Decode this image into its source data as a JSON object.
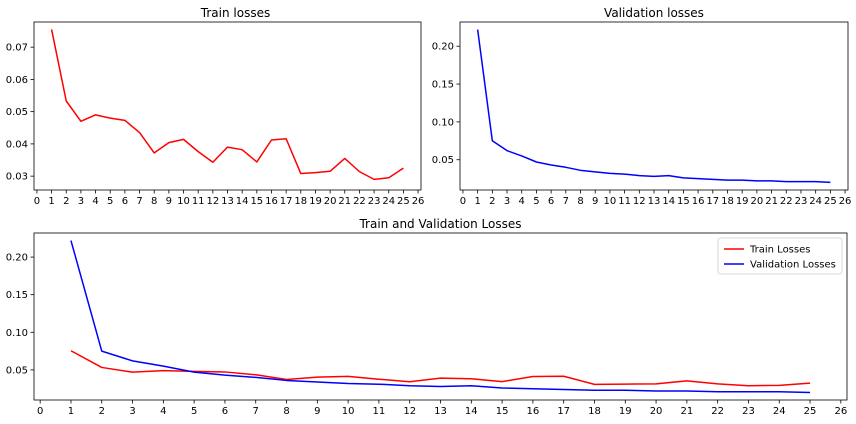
{
  "chart_data": [
    {
      "type": "line",
      "title": "Train losses",
      "x": [
        1,
        2,
        3,
        4,
        5,
        6,
        7,
        8,
        9,
        10,
        11,
        12,
        13,
        14,
        15,
        16,
        17,
        18,
        19,
        20,
        21,
        22,
        23,
        24,
        25
      ],
      "series": [
        {
          "values": [
            0.0755,
            0.0533,
            0.047,
            0.049,
            0.048,
            0.0473,
            0.0435,
            0.0372,
            0.0404,
            0.0414,
            0.0376,
            0.0343,
            0.039,
            0.0382,
            0.0344,
            0.0412,
            0.0416,
            0.0308,
            0.0311,
            0.0315,
            0.0355,
            0.0314,
            0.029,
            0.0295,
            0.0325
          ],
          "color": "#ff0000"
        }
      ],
      "xlim": [
        -0.2,
        26.2
      ],
      "ylim": [
        0.0257,
        0.0778
      ],
      "xticks": [
        "0",
        "1",
        "2",
        "3",
        "4",
        "5",
        "6",
        "7",
        "8",
        "9",
        "10",
        "11",
        "12",
        "13",
        "14",
        "15",
        "16",
        "17",
        "18",
        "19",
        "20",
        "21",
        "22",
        "23",
        "24",
        "25",
        "26"
      ],
      "yticks": [
        "0.03",
        "0.04",
        "0.05",
        "0.06",
        "0.07"
      ],
      "legend": "none",
      "grid": false
    },
    {
      "type": "line",
      "title": "Validation losses",
      "x": [
        1,
        2,
        3,
        4,
        5,
        6,
        7,
        8,
        9,
        10,
        11,
        12,
        13,
        14,
        15,
        16,
        17,
        18,
        19,
        20,
        21,
        22,
        23,
        24,
        25
      ],
      "series": [
        {
          "values": [
            0.222,
            0.075,
            0.062,
            0.055,
            0.047,
            0.043,
            0.04,
            0.036,
            0.034,
            0.032,
            0.031,
            0.029,
            0.028,
            0.029,
            0.026,
            0.025,
            0.024,
            0.023,
            0.023,
            0.022,
            0.022,
            0.021,
            0.021,
            0.021,
            0.02
          ],
          "color": "#0000ff"
        }
      ],
      "xlim": [
        -0.2,
        26.2
      ],
      "ylim": [
        0.01,
        0.232
      ],
      "xticks": [
        "0",
        "1",
        "2",
        "3",
        "4",
        "5",
        "6",
        "7",
        "8",
        "9",
        "10",
        "11",
        "12",
        "13",
        "14",
        "15",
        "16",
        "17",
        "18",
        "19",
        "20",
        "21",
        "22",
        "23",
        "24",
        "25",
        "26"
      ],
      "yticks": [
        "0.05",
        "0.10",
        "0.15",
        "0.20"
      ],
      "legend": "none",
      "grid": false
    },
    {
      "type": "line",
      "title": "Train and Validation Losses",
      "x": [
        1,
        2,
        3,
        4,
        5,
        6,
        7,
        8,
        9,
        10,
        11,
        12,
        13,
        14,
        15,
        16,
        17,
        18,
        19,
        20,
        21,
        22,
        23,
        24,
        25
      ],
      "series": [
        {
          "name": "Train Losses",
          "values": [
            0.0755,
            0.0533,
            0.047,
            0.049,
            0.048,
            0.0473,
            0.0435,
            0.0372,
            0.0404,
            0.0414,
            0.0376,
            0.0343,
            0.039,
            0.0382,
            0.0344,
            0.0412,
            0.0416,
            0.0308,
            0.0311,
            0.0315,
            0.0355,
            0.0314,
            0.029,
            0.0295,
            0.0325
          ],
          "color": "#ff0000"
        },
        {
          "name": "Validation Losses",
          "values": [
            0.222,
            0.075,
            0.062,
            0.055,
            0.047,
            0.043,
            0.04,
            0.036,
            0.034,
            0.032,
            0.031,
            0.029,
            0.028,
            0.029,
            0.026,
            0.025,
            0.024,
            0.023,
            0.023,
            0.022,
            0.022,
            0.021,
            0.021,
            0.021,
            0.02
          ],
          "color": "#0000ff"
        }
      ],
      "xlim": [
        -0.2,
        26.2
      ],
      "ylim": [
        0.01,
        0.232
      ],
      "xticks": [
        "0",
        "1",
        "2",
        "3",
        "4",
        "5",
        "6",
        "7",
        "8",
        "9",
        "10",
        "11",
        "12",
        "13",
        "14",
        "15",
        "16",
        "17",
        "18",
        "19",
        "20",
        "21",
        "22",
        "23",
        "24",
        "25",
        "26"
      ],
      "yticks": [
        "0.05",
        "0.10",
        "0.15",
        "0.20"
      ],
      "legend": "top-right",
      "grid": false
    }
  ]
}
